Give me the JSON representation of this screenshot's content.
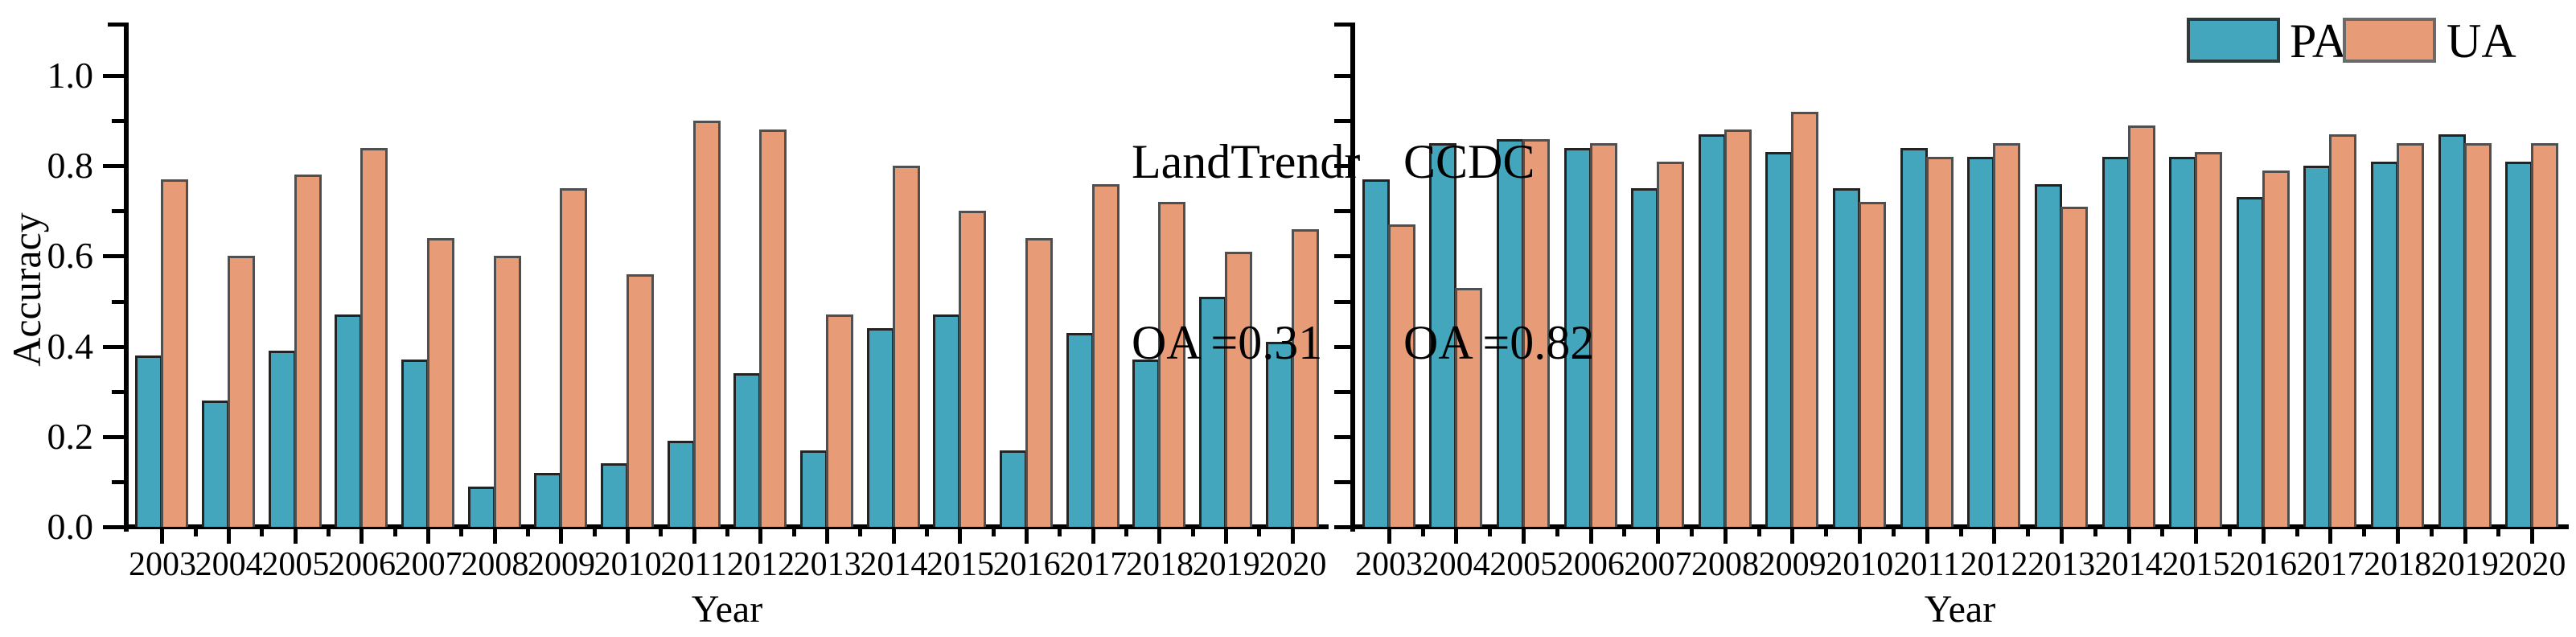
{
  "figure": {
    "ylabel": "Accuracy",
    "xlabel": "Year",
    "legend": {
      "items": [
        {
          "label": "PA",
          "color": "#44a6bc",
          "border": "#2f3a3d"
        },
        {
          "label": "UA",
          "color": "#e79b76",
          "border": "#6a6a6a"
        }
      ]
    },
    "colors": {
      "axis": "#000000",
      "background": "#ffffff",
      "pa_fill": "#44a6bc",
      "pa_border": "#232323",
      "ua_fill": "#e79b76",
      "ua_border": "#4f4f4f"
    }
  },
  "chart_data": [
    {
      "type": "bar",
      "title": "LandTrendr",
      "annotation": "OA =0.31",
      "xlabel": "Year",
      "ylabel": "Accuracy",
      "ylim": [
        0.0,
        1.12
      ],
      "yticks": [
        0.0,
        0.2,
        0.4,
        0.6,
        0.8,
        1.0
      ],
      "ytick_labels": [
        "0.0",
        "0.2",
        "0.4",
        "0.6",
        "0.8",
        "1.0"
      ],
      "show_ytick_labels": true,
      "grid": false,
      "legend_position": "top-right",
      "categories": [
        "2003",
        "2004",
        "2005",
        "2006",
        "2007",
        "2008",
        "2009",
        "2010",
        "2011",
        "2012",
        "2013",
        "2014",
        "2015",
        "2016",
        "2017",
        "2018",
        "2019",
        "2020"
      ],
      "series": [
        {
          "name": "PA",
          "values": [
            0.38,
            0.28,
            0.39,
            0.47,
            0.37,
            0.09,
            0.12,
            0.14,
            0.19,
            0.34,
            0.17,
            0.44,
            0.47,
            0.17,
            0.43,
            0.37,
            0.51,
            0.41
          ]
        },
        {
          "name": "UA",
          "values": [
            0.77,
            0.6,
            0.78,
            0.84,
            0.64,
            0.6,
            0.75,
            0.56,
            0.9,
            0.88,
            0.47,
            0.8,
            0.7,
            0.64,
            0.76,
            0.72,
            0.61,
            0.66
          ]
        }
      ]
    },
    {
      "type": "bar",
      "title": "CCDC",
      "annotation": "OA =0.82",
      "xlabel": "Year",
      "ylabel": "Accuracy",
      "ylim": [
        0.0,
        1.12
      ],
      "yticks": [
        0.0,
        0.2,
        0.4,
        0.6,
        0.8,
        1.0
      ],
      "ytick_labels": [
        "0.0",
        "0.2",
        "0.4",
        "0.6",
        "0.8",
        "1.0"
      ],
      "show_ytick_labels": false,
      "grid": false,
      "legend_position": "top-right",
      "categories": [
        "2003",
        "2004",
        "2005",
        "2006",
        "2007",
        "2008",
        "2009",
        "2010",
        "2011",
        "2012",
        "2013",
        "2014",
        "2015",
        "2016",
        "2017",
        "2018",
        "2019",
        "2020"
      ],
      "series": [
        {
          "name": "PA",
          "values": [
            0.77,
            0.85,
            0.86,
            0.84,
            0.75,
            0.87,
            0.83,
            0.75,
            0.84,
            0.82,
            0.76,
            0.82,
            0.82,
            0.73,
            0.8,
            0.81,
            0.87,
            0.81
          ]
        },
        {
          "name": "UA",
          "values": [
            0.67,
            0.53,
            0.86,
            0.85,
            0.81,
            0.88,
            0.92,
            0.72,
            0.82,
            0.85,
            0.71,
            0.89,
            0.83,
            0.79,
            0.87,
            0.85,
            0.85,
            0.85
          ]
        }
      ]
    }
  ]
}
